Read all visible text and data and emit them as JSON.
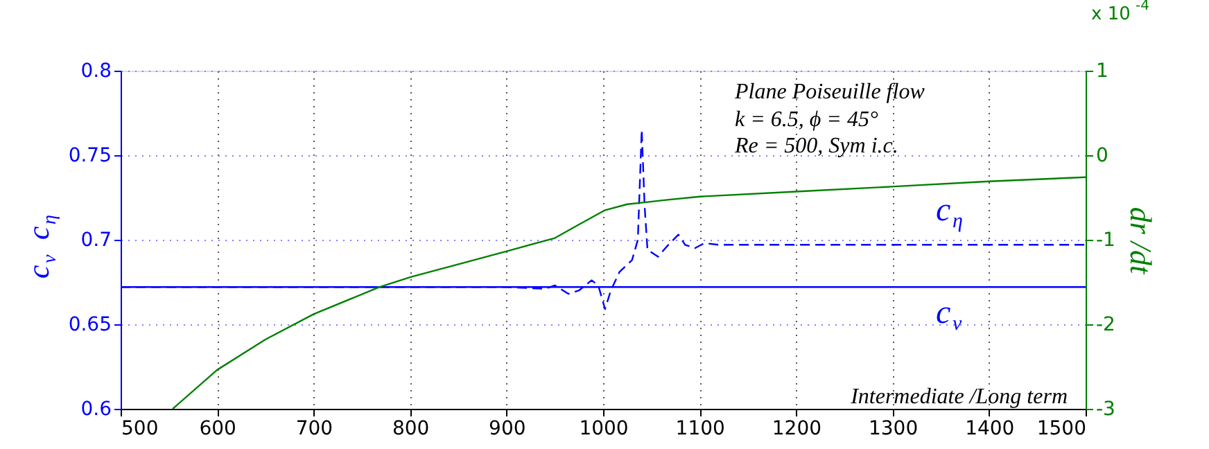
{
  "chart_data": {
    "type": "line",
    "ylabel": "c$_{v}$ c$_{η}$",
    "y2label": "dr /dt",
    "annotations": [
      "Plane Poiseuille flow",
      "k = 6.5, ϕ = 45°",
      "Re = 500,  Sym i.c.",
      "Intermediate /Long term",
      "x 10$^{-4}$"
    ],
    "xlim": [
      500,
      1500
    ],
    "xticks": [
      500,
      600,
      700,
      800,
      900,
      1000,
      1100,
      1200,
      1300,
      1400,
      1500
    ],
    "ylim": [
      0.6,
      0.8
    ],
    "yticks": [
      0.6,
      0.65,
      0.7,
      0.75,
      0.8
    ],
    "y2lim": [
      -3,
      1
    ],
    "y2ticks": [
      -3,
      -2,
      -1,
      0,
      1
    ],
    "grid": true,
    "series": [
      {
        "name": "c$_{v}$",
        "color": "#0000ff",
        "line_style": "solid",
        "x": [
          500,
          1500
        ],
        "values": [
          0.672,
          0.672
        ]
      },
      {
        "name": "c$_{η}$",
        "color": "#0000ff",
        "line_style": "dashed",
        "x": [
          500,
          900,
          940,
          950,
          964,
          975,
          988,
          995,
          1002,
          1008,
          1017,
          1030,
          1036,
          1040,
          1043,
          1046,
          1057,
          1066,
          1078,
          1085,
          1095,
          1105,
          1120,
          1500
        ],
        "values": [
          0.672,
          0.672,
          0.671,
          0.673,
          0.668,
          0.67,
          0.676,
          0.673,
          0.659,
          0.67,
          0.681,
          0.688,
          0.7,
          0.765,
          0.72,
          0.694,
          0.69,
          0.696,
          0.703,
          0.697,
          0.695,
          0.698,
          0.697,
          0.697
        ]
      },
      {
        "color": "#008000",
        "axis": "y2",
        "line_style": "solid",
        "x": [
          554,
          600,
          650,
          700,
          768,
          801,
          850,
          902,
          950,
          975,
          1002,
          1025,
          1041,
          1065,
          1100,
          1200,
          1302,
          1400,
          1500
        ],
        "values": [
          -3.0,
          -2.54,
          -2.18,
          -1.88,
          -1.56,
          -1.44,
          -1.29,
          -1.13,
          -0.98,
          -0.82,
          -0.65,
          -0.58,
          -0.56,
          -0.53,
          -0.49,
          -0.43,
          -0.37,
          -0.31,
          -0.26
        ]
      }
    ]
  }
}
